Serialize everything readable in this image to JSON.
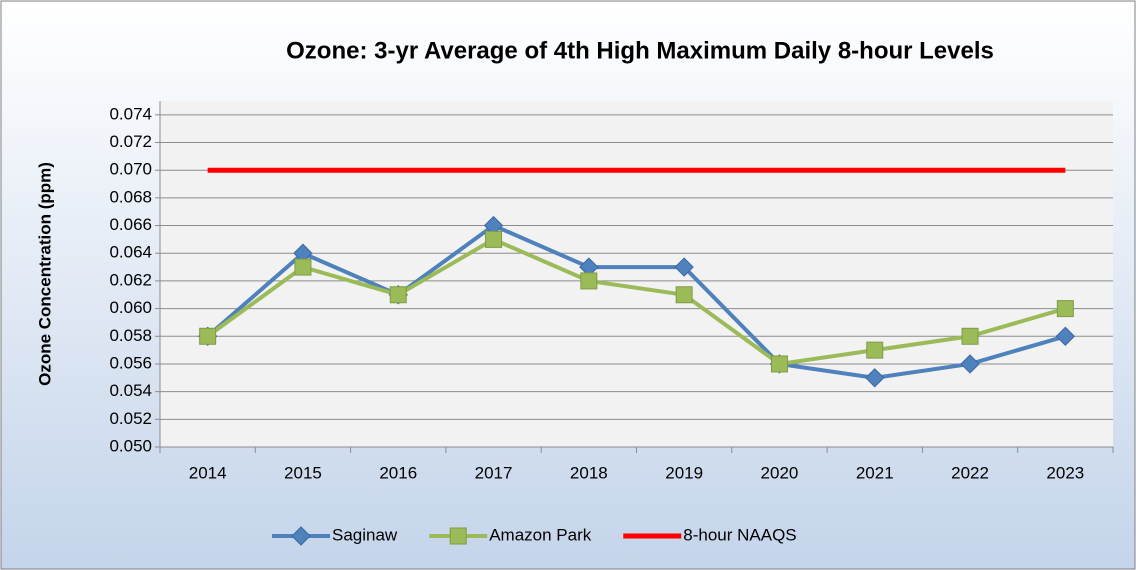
{
  "chart_data": {
    "type": "line",
    "title": "Ozone: 3-yr Average of 4th High Maximum Daily 8-hour Levels",
    "y_label": "Ozone Concentration (ppm)",
    "categories": [
      "2014",
      "2015",
      "2016",
      "2017",
      "2018",
      "2019",
      "2020",
      "2021",
      "2022",
      "2023"
    ],
    "series": [
      {
        "name": "Saginaw",
        "color": "#4f81bd",
        "marker": "diamond",
        "values": [
          0.058,
          0.064,
          0.061,
          0.066,
          0.063,
          0.063,
          0.056,
          0.055,
          0.056,
          0.058
        ]
      },
      {
        "name": "Amazon Park",
        "color": "#9bbb59",
        "marker": "square",
        "values": [
          0.058,
          0.063,
          0.061,
          0.065,
          0.062,
          0.061,
          0.056,
          0.057,
          0.058,
          0.06
        ]
      },
      {
        "name": "8-hour NAAQS",
        "color": "#ff0000",
        "values": [
          0.07,
          0.07,
          0.07,
          0.07,
          0.07,
          0.07,
          0.07,
          0.07,
          0.07,
          0.07
        ]
      }
    ],
    "ylim": [
      0.05,
      0.075
    ],
    "yticks": [
      {
        "value": 0.05,
        "label": "0.050"
      },
      0.052,
      0.054,
      0.056,
      0.058,
      {
        "value": 0.06,
        "label": "0.060"
      },
      0.062,
      0.064,
      0.066,
      0.068,
      {
        "value": 0.07,
        "label": "0.070"
      },
      0.072,
      0.074
    ],
    "grid": true,
    "legend": "bottom"
  }
}
